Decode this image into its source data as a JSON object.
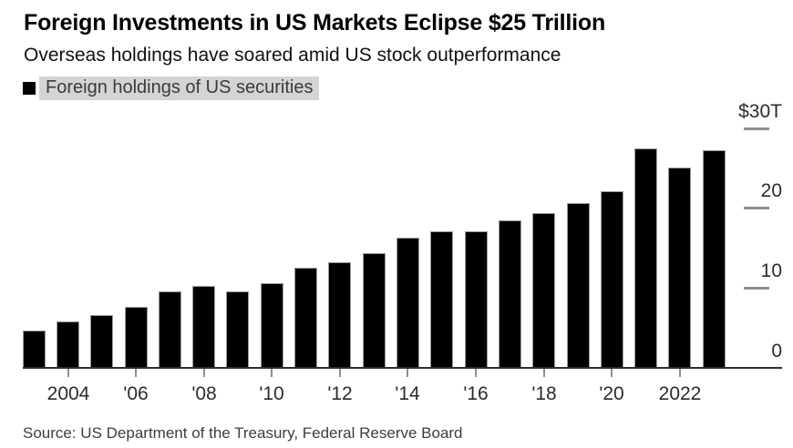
{
  "chart_data": {
    "type": "bar",
    "title": "Foreign Investments in US Markets Eclipse $25 Trillion",
    "subtitle": "Overseas holdings have soared amid US stock outperformance",
    "legend": "Foreign holdings of US securities",
    "unit": "USD trillions",
    "categories": [
      2003,
      2004,
      2005,
      2006,
      2007,
      2008,
      2009,
      2010,
      2011,
      2012,
      2013,
      2014,
      2015,
      2016,
      2017,
      2018,
      2019,
      2020,
      2021,
      2022,
      2023
    ],
    "values": [
      4.7,
      5.8,
      6.6,
      7.6,
      9.6,
      10.2,
      9.6,
      10.6,
      12.5,
      13.2,
      14.4,
      16.3,
      17.1,
      17.1,
      18.5,
      19.4,
      20.6,
      22.1,
      27.5,
      25.1,
      27.2
    ],
    "ylim": [
      0,
      30
    ],
    "y_axis_side": "right",
    "grid": false,
    "legend_position": "top-left",
    "y_ticks": [
      {
        "value": 30,
        "label": "$30T"
      },
      {
        "value": 20,
        "label": "20"
      },
      {
        "value": 10,
        "label": "10"
      },
      {
        "value": 0,
        "label": "0"
      }
    ],
    "x_tick_labels": [
      {
        "year": 2004,
        "label": "2004"
      },
      {
        "year": 2006,
        "label": "'06"
      },
      {
        "year": 2008,
        "label": "'08"
      },
      {
        "year": 2010,
        "label": "'10"
      },
      {
        "year": 2012,
        "label": "'12"
      },
      {
        "year": 2014,
        "label": "'14"
      },
      {
        "year": 2016,
        "label": "'16"
      },
      {
        "year": 2018,
        "label": "'18"
      },
      {
        "year": 2020,
        "label": "'20"
      },
      {
        "year": 2022,
        "label": "2022"
      }
    ],
    "source": "Source: US Department of the Treasury, Federal Reserve Board",
    "colors": {
      "bar": "#000000",
      "bar_edge": "#9b9b9b",
      "axis_line": "#2e2e2e",
      "tick": "#8f8f8f",
      "axis_label": "#2b2b2b",
      "legend_highlight": "#d4d4d4",
      "legend_text": "#3a3a3a",
      "title_text": "#000000",
      "source_text": "#3d3d3d"
    }
  }
}
